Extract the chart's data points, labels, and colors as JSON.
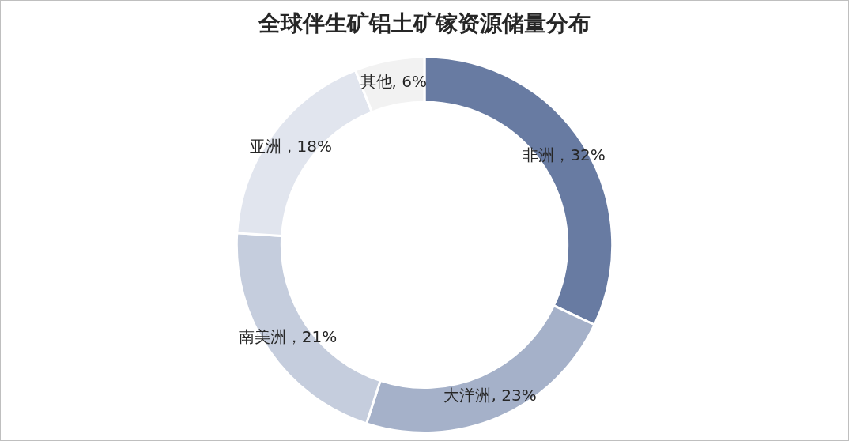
{
  "chart_data": {
    "type": "donut",
    "title": "全球伴生矿铝土矿镓资源储量分布",
    "categories": [
      "非洲",
      "大洋洲",
      "南美洲",
      "亚洲",
      "其他"
    ],
    "values": [
      32,
      23,
      21,
      18,
      6
    ],
    "colors": [
      "#687ba2",
      "#a5b1c9",
      "#c5cddd",
      "#e1e5ee",
      "#f2f2f2"
    ],
    "value_labels": [
      "，32%",
      ", 23%",
      "，21%",
      "，18%",
      ", 6%"
    ],
    "legend": false
  }
}
